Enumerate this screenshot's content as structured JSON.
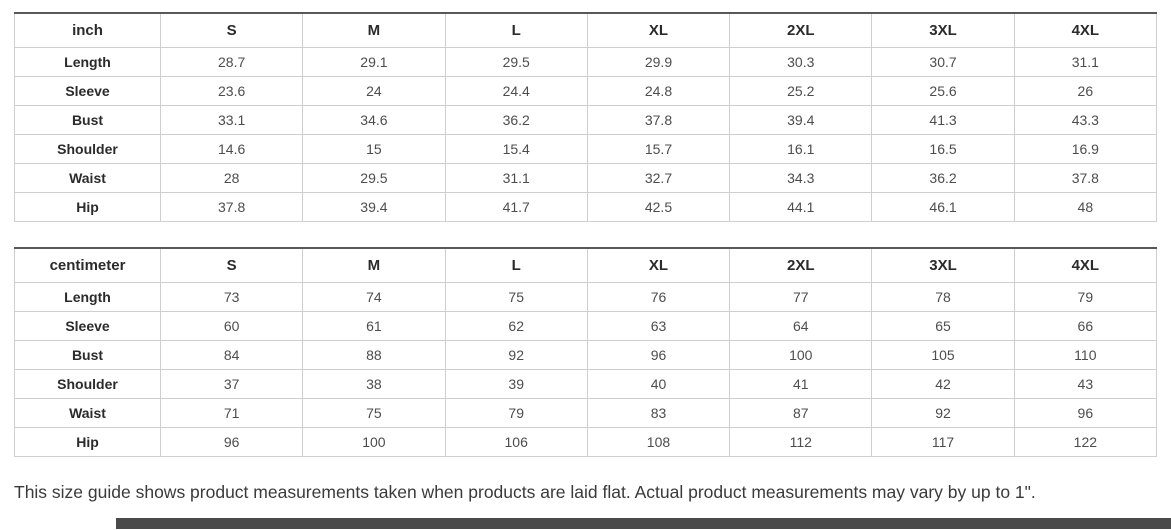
{
  "note": "This size guide shows product measurements taken when products are laid flat. Actual product measurements may vary by up to 1\".",
  "colors": {
    "table_top_border": "#595959",
    "grid_border": "#cccccc",
    "header_text": "#2b2b2b",
    "value_text": "#4d4d4d",
    "note_text": "#3a3a3a",
    "cutoff_bar": "#4a4a4a"
  },
  "tables": [
    {
      "unit_label": "inch",
      "sizes": [
        "S",
        "M",
        "L",
        "XL",
        "2XL",
        "3XL",
        "4XL"
      ],
      "rows": [
        {
          "label": "Length",
          "values": [
            "28.7",
            "29.1",
            "29.5",
            "29.9",
            "30.3",
            "30.7",
            "31.1"
          ]
        },
        {
          "label": "Sleeve",
          "values": [
            "23.6",
            "24",
            "24.4",
            "24.8",
            "25.2",
            "25.6",
            "26"
          ]
        },
        {
          "label": "Bust",
          "values": [
            "33.1",
            "34.6",
            "36.2",
            "37.8",
            "39.4",
            "41.3",
            "43.3"
          ]
        },
        {
          "label": "Shoulder",
          "values": [
            "14.6",
            "15",
            "15.4",
            "15.7",
            "16.1",
            "16.5",
            "16.9"
          ]
        },
        {
          "label": "Waist",
          "values": [
            "28",
            "29.5",
            "31.1",
            "32.7",
            "34.3",
            "36.2",
            "37.8"
          ]
        },
        {
          "label": "Hip",
          "values": [
            "37.8",
            "39.4",
            "41.7",
            "42.5",
            "44.1",
            "46.1",
            "48"
          ]
        }
      ]
    },
    {
      "unit_label": "centimeter",
      "sizes": [
        "S",
        "M",
        "L",
        "XL",
        "2XL",
        "3XL",
        "4XL"
      ],
      "rows": [
        {
          "label": "Length",
          "values": [
            "73",
            "74",
            "75",
            "76",
            "77",
            "78",
            "79"
          ]
        },
        {
          "label": "Sleeve",
          "values": [
            "60",
            "61",
            "62",
            "63",
            "64",
            "65",
            "66"
          ]
        },
        {
          "label": "Bust",
          "values": [
            "84",
            "88",
            "92",
            "96",
            "100",
            "105",
            "110"
          ]
        },
        {
          "label": "Shoulder",
          "values": [
            "37",
            "38",
            "39",
            "40",
            "41",
            "42",
            "43"
          ]
        },
        {
          "label": "Waist",
          "values": [
            "71",
            "75",
            "79",
            "83",
            "87",
            "92",
            "96"
          ]
        },
        {
          "label": "Hip",
          "values": [
            "96",
            "100",
            "106",
            "108",
            "112",
            "117",
            "122"
          ]
        }
      ]
    }
  ]
}
